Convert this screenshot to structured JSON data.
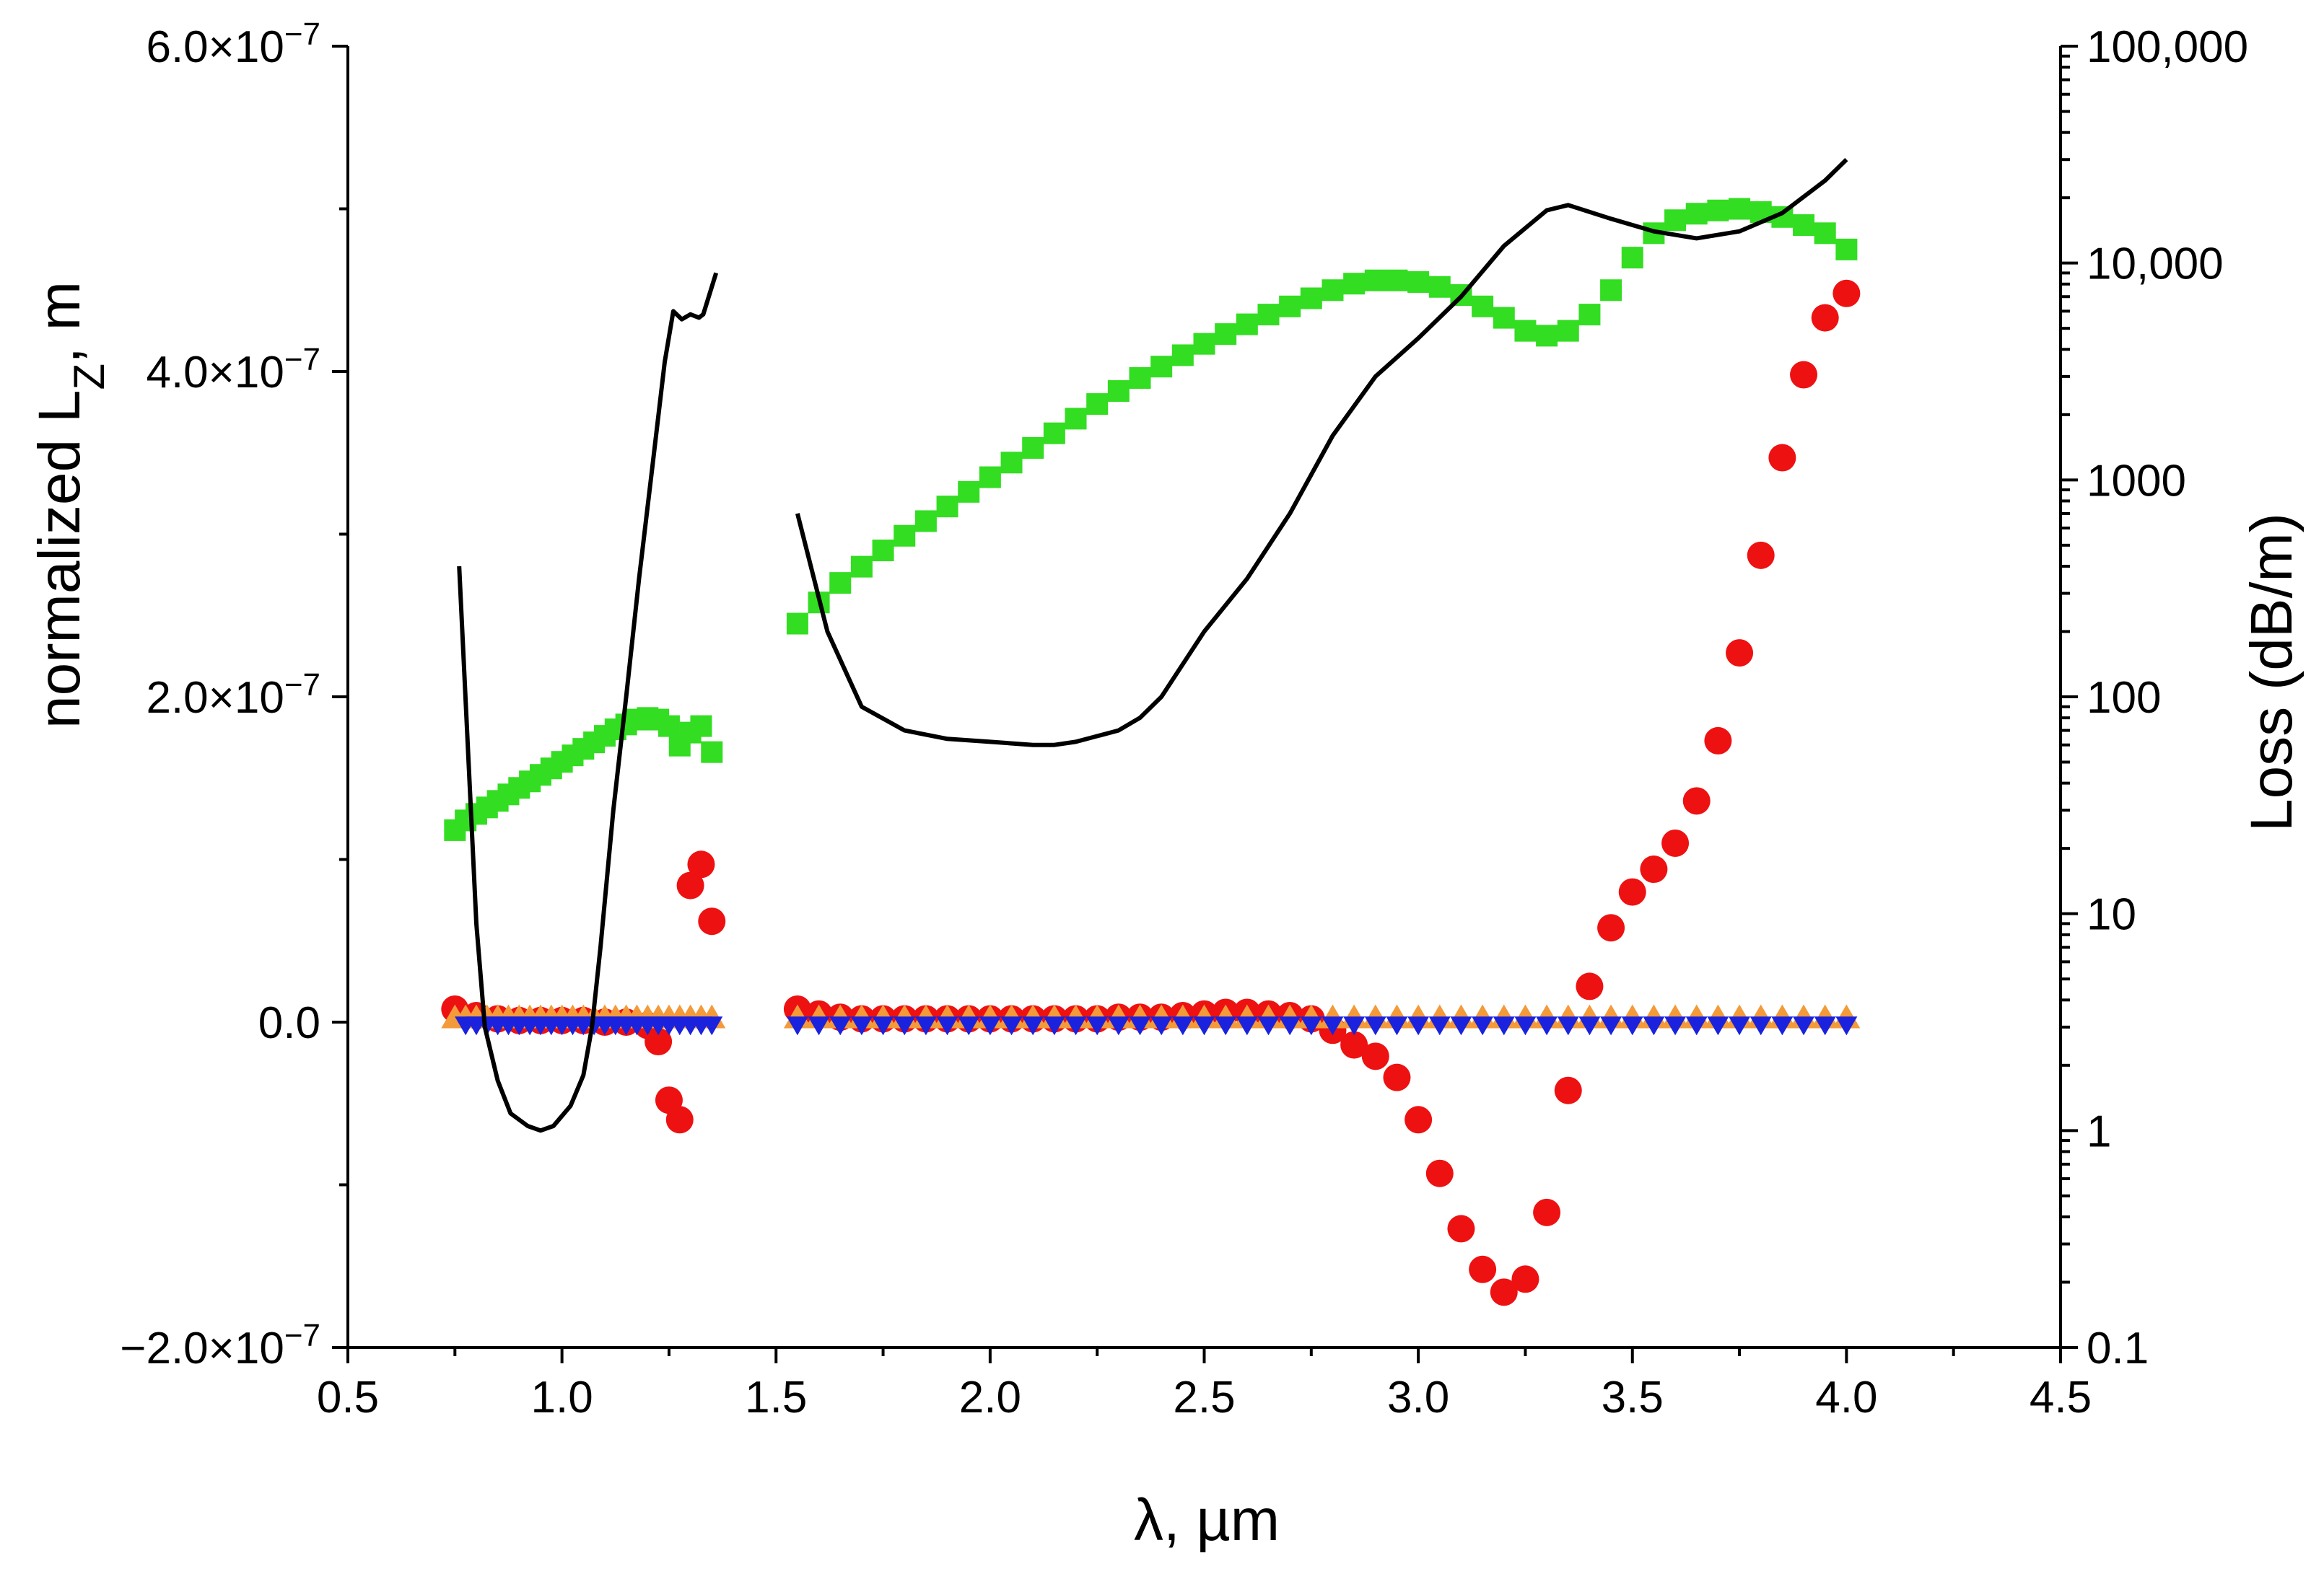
{
  "chart_data": {
    "type": "scatter",
    "title": "",
    "xlabel": "λ, µm",
    "ylabel": "normalized L",
    "ylabel_sub": "Z",
    "ylabel_suffix": ", m",
    "y2label": "Loss (dB/m)",
    "xlim": [
      0.5,
      4.5
    ],
    "ylim": [
      -2e-07,
      6e-07
    ],
    "y2lim": [
      0.1,
      100000
    ],
    "y2scale": "log",
    "grid": false,
    "legend": "none",
    "x_ticks": [
      "0.5",
      "1.0",
      "1.5",
      "2.0",
      "2.5",
      "3.0",
      "3.5",
      "4.0",
      "4.5"
    ],
    "y_ticks": [
      {
        "value": -2e-07,
        "mant": "−2.0×10",
        "exp": "−7"
      },
      {
        "value": 0,
        "mant": "0.0",
        "exp": ""
      },
      {
        "value": 2e-07,
        "mant": "2.0×10",
        "exp": "−7"
      },
      {
        "value": 4e-07,
        "mant": "4.0×10",
        "exp": "−7"
      },
      {
        "value": 6e-07,
        "mant": "6.0×10",
        "exp": "−7"
      }
    ],
    "y2_ticks": [
      {
        "value": 0.1,
        "label": "0.1"
      },
      {
        "value": 1,
        "label": "1"
      },
      {
        "value": 10,
        "label": "10"
      },
      {
        "value": 100,
        "label": "100"
      },
      {
        "value": 1000,
        "label": "1000"
      },
      {
        "value": 10000,
        "label": "10,000"
      },
      {
        "value": 100000,
        "label": "100,000"
      }
    ],
    "series": [
      {
        "name": "green-squares",
        "marker": "square",
        "color": "#33dd22",
        "axis": "left",
        "x": [
          0.75,
          0.775,
          0.8,
          0.825,
          0.85,
          0.875,
          0.9,
          0.925,
          0.95,
          0.975,
          1.0,
          1.025,
          1.05,
          1.075,
          1.1,
          1.125,
          1.15,
          1.175,
          1.2,
          1.225,
          1.25,
          1.275,
          1.3,
          1.325,
          1.35,
          1.55,
          1.6,
          1.65,
          1.7,
          1.75,
          1.8,
          1.85,
          1.9,
          1.95,
          2.0,
          2.05,
          2.1,
          2.15,
          2.2,
          2.25,
          2.3,
          2.35,
          2.4,
          2.45,
          2.5,
          2.55,
          2.6,
          2.65,
          2.7,
          2.75,
          2.8,
          2.85,
          2.9,
          2.95,
          3.0,
          3.05,
          3.1,
          3.15,
          3.2,
          3.25,
          3.3,
          3.35,
          3.4,
          3.45,
          3.5,
          3.55,
          3.6,
          3.65,
          3.7,
          3.75,
          3.8,
          3.85,
          3.9,
          3.95,
          4.0
        ],
        "y": [
          1.18e-07,
          1.24e-07,
          1.28e-07,
          1.32e-07,
          1.36e-07,
          1.4e-07,
          1.44e-07,
          1.48e-07,
          1.52e-07,
          1.56e-07,
          1.6e-07,
          1.64e-07,
          1.68e-07,
          1.72e-07,
          1.76e-07,
          1.8e-07,
          1.83e-07,
          1.86e-07,
          1.87e-07,
          1.86e-07,
          1.82e-07,
          1.7e-07,
          1.78e-07,
          1.82e-07,
          1.66e-07,
          2.45e-07,
          2.58e-07,
          2.7e-07,
          2.8e-07,
          2.9e-07,
          2.99e-07,
          3.08e-07,
          3.17e-07,
          3.26e-07,
          3.35e-07,
          3.44e-07,
          3.53e-07,
          3.62e-07,
          3.71e-07,
          3.8e-07,
          3.88e-07,
          3.96e-07,
          4.03e-07,
          4.1e-07,
          4.17e-07,
          4.23e-07,
          4.29e-07,
          4.35e-07,
          4.4e-07,
          4.45e-07,
          4.5e-07,
          4.54e-07,
          4.56e-07,
          4.56e-07,
          4.55e-07,
          4.52e-07,
          4.47e-07,
          4.4e-07,
          4.33e-07,
          4.25e-07,
          4.22e-07,
          4.25e-07,
          4.35e-07,
          4.5e-07,
          4.7e-07,
          4.85e-07,
          4.93e-07,
          4.97e-07,
          4.99e-07,
          5e-07,
          4.98e-07,
          4.95e-07,
          4.9e-07,
          4.85e-07,
          4.75e-07
        ]
      },
      {
        "name": "red-circles",
        "marker": "circle",
        "color": "#ee1111",
        "axis": "left",
        "x": [
          0.75,
          0.8,
          0.85,
          0.9,
          0.95,
          1.0,
          1.05,
          1.1,
          1.15,
          1.2,
          1.225,
          1.25,
          1.275,
          1.3,
          1.325,
          1.35,
          1.55,
          1.6,
          1.65,
          1.7,
          1.75,
          1.8,
          1.85,
          1.9,
          1.95,
          2.0,
          2.05,
          2.1,
          2.15,
          2.2,
          2.25,
          2.3,
          2.35,
          2.4,
          2.45,
          2.5,
          2.55,
          2.6,
          2.65,
          2.7,
          2.75,
          2.8,
          2.85,
          2.9,
          2.95,
          3.0,
          3.05,
          3.1,
          3.15,
          3.2,
          3.25,
          3.3,
          3.35,
          3.4,
          3.45,
          3.5,
          3.55,
          3.6,
          3.65,
          3.7,
          3.75,
          3.8,
          3.85,
          3.9,
          3.95,
          4.0
        ],
        "y": [
          8e-09,
          4e-09,
          2e-09,
          1e-09,
          1e-09,
          1e-09,
          1e-09,
          0.0,
          0.0,
          -2e-09,
          -1.2e-08,
          -4.8e-08,
          -6e-08,
          8.4e-08,
          9.7e-08,
          6.2e-08,
          8e-09,
          5e-09,
          3e-09,
          2e-09,
          2e-09,
          2e-09,
          2e-09,
          2e-09,
          2e-09,
          2e-09,
          2e-09,
          2e-09,
          2e-09,
          2e-09,
          2e-09,
          3e-09,
          3e-09,
          3e-09,
          4e-09,
          5e-09,
          6e-09,
          6e-09,
          5e-09,
          4e-09,
          2e-09,
          -5e-09,
          -1.4e-08,
          -2.1e-08,
          -3.4e-08,
          -6e-08,
          -9.3e-08,
          -1.27e-07,
          -1.52e-07,
          -1.66e-07,
          -1.58e-07,
          -1.17e-07,
          -4.2e-08,
          2.2e-08,
          5.8e-08,
          8e-08,
          9.4e-08,
          1.1e-07,
          1.36e-07,
          1.73e-07,
          2.27e-07,
          2.87e-07,
          3.47e-07,
          3.98e-07,
          4.33e-07,
          4.48e-07
        ]
      },
      {
        "name": "orange-triangles-up",
        "marker": "triangle-up",
        "color": "#f39a3a",
        "axis": "left",
        "x": [
          0.75,
          0.775,
          0.8,
          0.825,
          0.85,
          0.875,
          0.9,
          0.925,
          0.95,
          0.975,
          1.0,
          1.025,
          1.05,
          1.075,
          1.1,
          1.125,
          1.15,
          1.175,
          1.2,
          1.225,
          1.25,
          1.275,
          1.3,
          1.325,
          1.35,
          1.55,
          1.6,
          1.65,
          1.7,
          1.75,
          1.8,
          1.85,
          1.9,
          1.95,
          2.0,
          2.05,
          2.1,
          2.15,
          2.2,
          2.25,
          2.3,
          2.35,
          2.4,
          2.45,
          2.5,
          2.55,
          2.6,
          2.65,
          2.7,
          2.75,
          2.8,
          2.85,
          2.9,
          2.95,
          3.0,
          3.05,
          3.1,
          3.15,
          3.2,
          3.25,
          3.3,
          3.35,
          3.4,
          3.45,
          3.5,
          3.55,
          3.6,
          3.65,
          3.7,
          3.75,
          3.8,
          3.85,
          3.9,
          3.95,
          4.0
        ],
        "y": [
          2e-09,
          2e-09,
          2e-09,
          2e-09,
          2e-09,
          2e-09,
          2e-09,
          2e-09,
          2e-09,
          2e-09,
          2e-09,
          2e-09,
          2e-09,
          2e-09,
          2e-09,
          2e-09,
          2e-09,
          2e-09,
          2e-09,
          2e-09,
          2e-09,
          2e-09,
          2e-09,
          2e-09,
          2e-09,
          2e-09,
          2e-09,
          2e-09,
          2e-09,
          2e-09,
          2e-09,
          2e-09,
          2e-09,
          2e-09,
          2e-09,
          2e-09,
          2e-09,
          2e-09,
          2e-09,
          2e-09,
          2e-09,
          2e-09,
          2e-09,
          2e-09,
          2e-09,
          2e-09,
          2e-09,
          2e-09,
          2e-09,
          2e-09,
          2e-09,
          2e-09,
          2e-09,
          2e-09,
          2e-09,
          2e-09,
          2e-09,
          2e-09,
          2e-09,
          2e-09,
          2e-09,
          2e-09,
          2e-09,
          2e-09,
          2e-09,
          2e-09,
          2e-09,
          2e-09,
          2e-09,
          2e-09,
          2e-09,
          2e-09,
          2e-09,
          2e-09,
          2e-09
        ]
      },
      {
        "name": "blue-triangles-down",
        "marker": "triangle-down",
        "color": "#1a22dd",
        "axis": "left",
        "x": [
          0.775,
          0.8,
          0.825,
          0.85,
          0.875,
          0.9,
          0.925,
          0.95,
          0.975,
          1.0,
          1.025,
          1.05,
          1.075,
          1.1,
          1.125,
          1.15,
          1.175,
          1.2,
          1.225,
          1.25,
          1.275,
          1.3,
          1.325,
          1.35,
          1.55,
          1.6,
          1.65,
          1.7,
          1.75,
          1.8,
          1.85,
          1.9,
          1.95,
          2.0,
          2.05,
          2.1,
          2.15,
          2.2,
          2.25,
          2.3,
          2.35,
          2.4,
          2.45,
          2.5,
          2.55,
          2.6,
          2.65,
          2.7,
          2.75,
          2.8,
          2.85,
          2.9,
          2.95,
          3.0,
          3.05,
          3.1,
          3.15,
          3.2,
          3.25,
          3.3,
          3.35,
          3.4,
          3.45,
          3.5,
          3.55,
          3.6,
          3.65,
          3.7,
          3.75,
          3.8,
          3.85,
          3.9,
          3.95,
          4.0
        ],
        "y": [
          -1e-09,
          -1e-09,
          -1e-09,
          -1e-09,
          -1e-09,
          -1e-09,
          -1e-09,
          -1e-09,
          -1e-09,
          -1e-09,
          -1e-09,
          -1e-09,
          -1e-09,
          -1e-09,
          -1e-09,
          -1e-09,
          -1e-09,
          -1e-09,
          -1e-09,
          -1e-09,
          -1e-09,
          -1e-09,
          -1e-09,
          -1e-09,
          -1e-09,
          -1e-09,
          -1e-09,
          -1e-09,
          -1e-09,
          -1e-09,
          -1e-09,
          -1e-09,
          -1e-09,
          -1e-09,
          -1e-09,
          -1e-09,
          -1e-09,
          -1e-09,
          -1e-09,
          -1e-09,
          -1e-09,
          -1e-09,
          -1e-09,
          -1e-09,
          -1e-09,
          -1e-09,
          -1e-09,
          -1e-09,
          -1e-09,
          -1e-09,
          -1e-09,
          -1e-09,
          -1e-09,
          -1e-09,
          -1e-09,
          -1e-09,
          -1e-09,
          -1e-09,
          -1e-09,
          -1e-09,
          -1e-09,
          -1e-09,
          -1e-09,
          -1e-09,
          -1e-09,
          -1e-09,
          -1e-09,
          -1e-09,
          -1e-09,
          -1e-09,
          -1e-09,
          -1e-09,
          -1e-09,
          -1e-09
        ]
      },
      {
        "name": "loss-line-segment-1",
        "marker": "line",
        "color": "#000000",
        "axis": "right",
        "x": [
          0.76,
          0.8,
          0.82,
          0.85,
          0.88,
          0.92,
          0.95,
          0.98,
          1.02,
          1.05,
          1.07,
          1.09,
          1.12,
          1.15,
          1.18,
          1.21,
          1.24,
          1.26,
          1.28,
          1.3,
          1.32,
          1.33,
          1.36
        ],
        "y": [
          400,
          9,
          3,
          1.7,
          1.2,
          1.05,
          1.0,
          1.05,
          1.3,
          1.8,
          3.0,
          7,
          30,
          100,
          350,
          1100,
          3500,
          6000,
          5500,
          5800,
          5600,
          5800,
          9000
        ]
      },
      {
        "name": "loss-line-segment-2",
        "marker": "line",
        "color": "#000000",
        "axis": "right",
        "x": [
          1.55,
          1.62,
          1.7,
          1.8,
          1.9,
          2.0,
          2.1,
          2.15,
          2.2,
          2.3,
          2.35,
          2.4,
          2.5,
          2.6,
          2.7,
          2.8,
          2.9,
          3.0,
          3.1,
          3.2,
          3.3,
          3.35,
          3.45,
          3.55,
          3.65,
          3.75,
          3.85,
          3.95,
          4.0
        ],
        "y": [
          700,
          200,
          90,
          70,
          64,
          62,
          60,
          60,
          62,
          70,
          80,
          100,
          200,
          350,
          700,
          1600,
          3000,
          4500,
          7000,
          12000,
          17500,
          18500,
          16000,
          14000,
          13000,
          14000,
          17000,
          24000,
          30000
        ]
      }
    ]
  }
}
